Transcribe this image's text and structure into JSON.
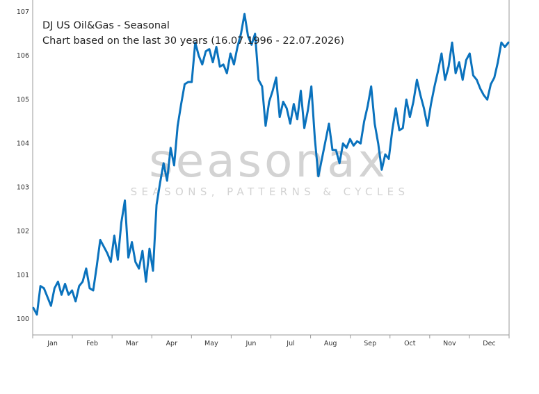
{
  "title": "DJ US Oil&Gas - Seasonal",
  "subtitle": "Chart based on the last 30 years (16.07.1996 - 22.07.2026)",
  "watermark": {
    "brand": "seasonax",
    "tagline": "SEASONS, PATTERNS & CYCLES"
  },
  "colors": {
    "line": "#0a72bd",
    "axis": "#999999",
    "watermark": "#d3d3d3"
  },
  "chart_data": {
    "type": "line",
    "title": "DJ US Oil&Gas - Seasonal",
    "subtitle": "Chart based on the last 30 years (16.07.1996 - 22.07.2026)",
    "xlabel": "",
    "ylabel": "",
    "yticks": [
      "100",
      "101",
      "102",
      "103",
      "104",
      "105",
      "106",
      "107"
    ],
    "ylim": [
      99.7,
      107.2
    ],
    "xticks": [
      "Jan",
      "Feb",
      "Mar",
      "Apr",
      "May",
      "Jun",
      "Jul",
      "Aug",
      "Sep",
      "Oct",
      "Nov",
      "Dec"
    ],
    "grid": false,
    "series": [
      {
        "values": [
          100.25,
          100.1,
          100.75,
          100.7,
          100.5,
          100.3,
          100.7,
          100.85,
          100.55,
          100.8,
          100.55,
          100.65,
          100.4,
          100.75,
          100.85,
          101.15,
          100.7,
          100.65,
          101.2,
          101.8,
          101.65,
          101.5,
          101.3,
          101.9,
          101.35,
          102.2,
          102.7,
          101.4,
          101.75,
          101.3,
          101.15,
          101.55,
          100.85,
          101.6,
          101.1,
          102.6,
          103.1,
          103.55,
          103.15,
          103.9,
          103.5,
          104.4,
          104.9,
          105.35,
          105.4,
          105.4,
          106.3,
          106.0,
          105.8,
          106.1,
          106.15,
          105.85,
          106.2,
          105.75,
          105.8,
          105.6,
          106.05,
          105.8,
          106.2,
          106.5,
          106.95,
          106.45,
          106.25,
          106.5,
          105.45,
          105.3,
          104.4,
          104.95,
          105.2,
          105.5,
          104.6,
          104.95,
          104.8,
          104.45,
          104.9,
          104.55,
          105.2,
          104.35,
          104.75,
          105.3,
          104.1,
          103.25,
          103.65,
          104.05,
          104.45,
          103.85,
          103.85,
          103.55,
          104.0,
          103.9,
          104.1,
          103.95,
          104.05,
          104.0,
          104.5,
          104.85,
          105.3,
          104.45,
          104.0,
          103.4,
          103.75,
          103.65,
          104.3,
          104.8,
          104.3,
          104.35,
          105.0,
          104.6,
          104.95,
          105.45,
          105.1,
          104.8,
          104.4,
          104.9,
          105.3,
          105.65,
          106.05,
          105.45,
          105.75,
          106.3,
          105.6,
          105.85,
          105.45,
          105.9,
          106.05,
          105.55,
          105.45,
          105.25,
          105.1,
          105.0,
          105.35,
          105.5,
          105.85,
          106.3,
          106.2,
          106.3
        ]
      }
    ]
  }
}
